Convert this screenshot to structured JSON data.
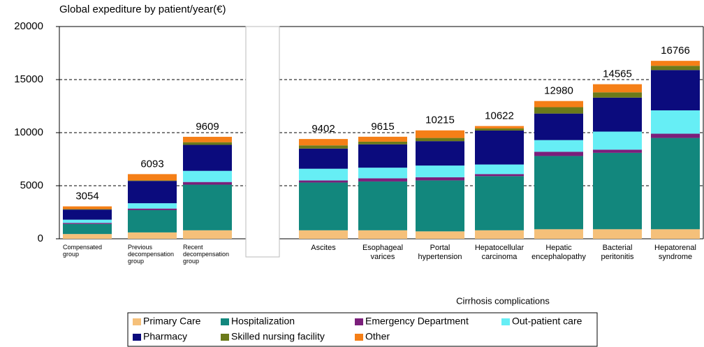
{
  "chart_data": {
    "type": "stacked_bar",
    "title": "Global expediture by patient/year(€)",
    "x_label": "Cirrhosis complications",
    "categories": [
      "Compensated\ngroup",
      "Previous\ndecompensation\ngroup",
      "Recent\ndecompensation\ngroup",
      "Ascites",
      "Esophageal\nvarices",
      "Portal\nhypertension",
      "Hepatocellular\ncarcinoma",
      "Hepatic\nencephalopathy",
      "Bacterial\nperitonitis",
      "Hepatorenal\nsyndrome"
    ],
    "series": [
      {
        "name": "Primary Care",
        "color": "#f5c07a",
        "values": [
          450,
          600,
          800,
          800,
          800,
          700,
          800,
          900,
          900,
          900
        ]
      },
      {
        "name": "Hospitalization",
        "color": "#12877d",
        "values": [
          950,
          2100,
          4300,
          4500,
          4600,
          4800,
          5100,
          6900,
          7200,
          8600
        ]
      },
      {
        "name": "Emergency Department",
        "color": "#7b1f7b",
        "values": [
          100,
          150,
          250,
          200,
          300,
          300,
          200,
          400,
          300,
          400
        ]
      },
      {
        "name": "Out-patient care",
        "color": "#66eef5",
        "values": [
          300,
          500,
          1050,
          1100,
          1000,
          1100,
          900,
          1100,
          1700,
          2200
        ]
      },
      {
        "name": "Pharmacy",
        "color": "#0b0b7d",
        "values": [
          950,
          2100,
          2450,
          1900,
          2200,
          2300,
          3200,
          2500,
          3200,
          3800
        ]
      },
      {
        "name": "Skilled nursing facility",
        "color": "#6b7a1a",
        "values": [
          50,
          50,
          250,
          300,
          250,
          300,
          200,
          600,
          500,
          400
        ]
      },
      {
        "name": "Other",
        "color": "#f57f17",
        "values": [
          254,
          593,
          509,
          602,
          465,
          715,
          222,
          580,
          765,
          466
        ]
      }
    ],
    "totals": [
      3054,
      6093,
      9609,
      9402,
      9615,
      10215,
      10622,
      12980,
      14565,
      16766
    ],
    "ylim": [
      0,
      20000
    ],
    "yticks": [
      0,
      5000,
      10000,
      15000,
      20000
    ],
    "grid": true
  }
}
